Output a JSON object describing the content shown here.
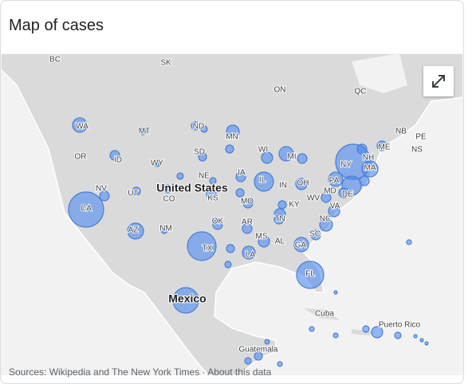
{
  "header": {
    "title": "Map of cases"
  },
  "map": {
    "labels": [
      "BC",
      "SK",
      "ON",
      "QC",
      "NB",
      "PE",
      "NS",
      "ME",
      "WA",
      "MT",
      "ND",
      "MN",
      "OR",
      "ID",
      "WY",
      "SD",
      "WI",
      "MI",
      "NY",
      "NH",
      "MA",
      "NE",
      "IA",
      "PA",
      "NV",
      "UT",
      "United States",
      "CO",
      "KS",
      "IL",
      "IN",
      "OH",
      "WV",
      "MD",
      "DE",
      "CA",
      "MO",
      "KY",
      "VA",
      "OK",
      "AR",
      "TN",
      "NC",
      "AZ",
      "NM",
      "MS",
      "AL",
      "SC",
      "GA",
      "TX",
      "LA",
      "FL",
      "Mexico",
      "Cuba",
      "Puerto Rico",
      "Guatemala"
    ]
  },
  "footer": {
    "source": "Sources: Wikipedia and The New York Times · About this data"
  }
}
